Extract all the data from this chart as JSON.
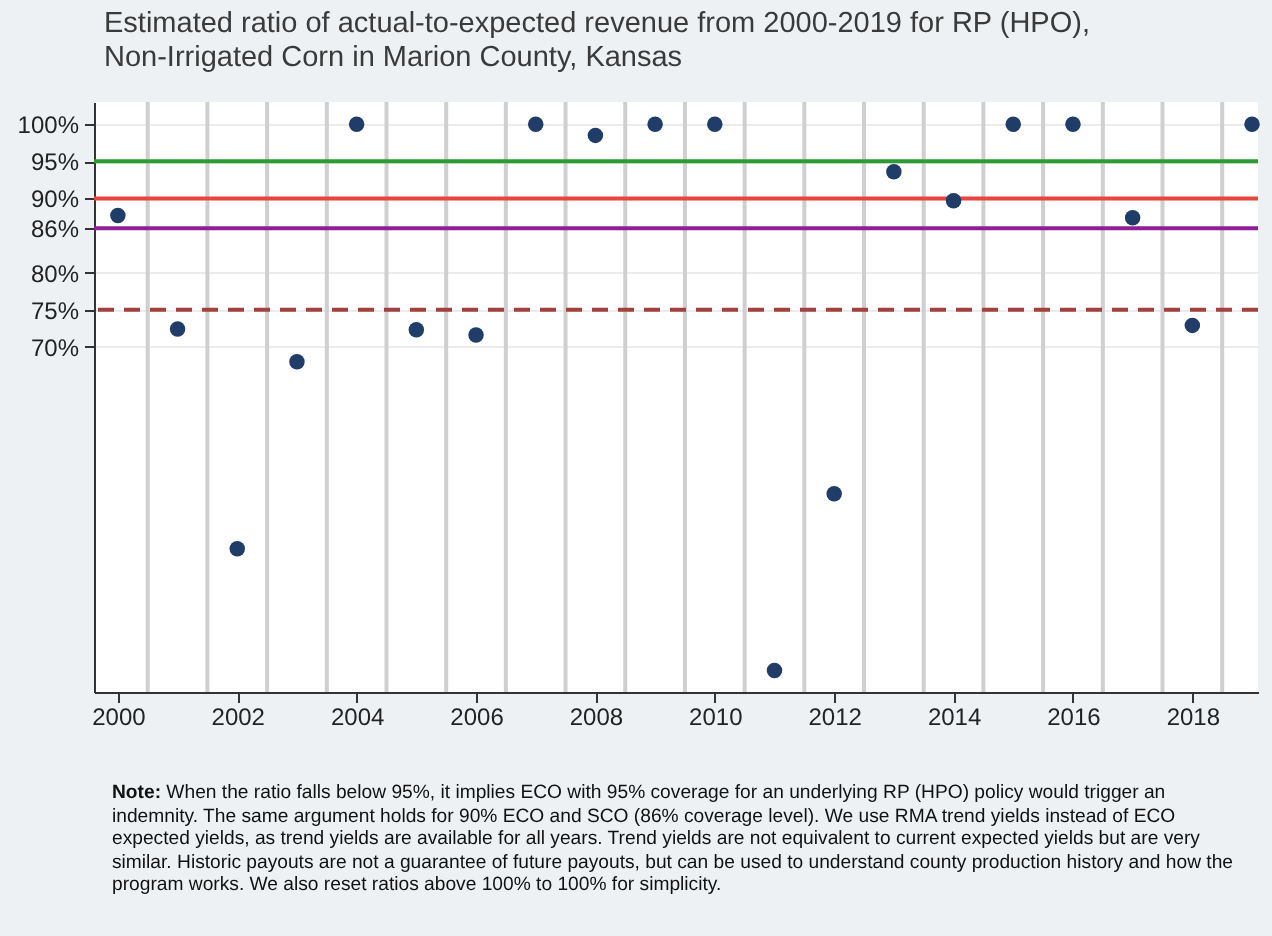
{
  "chart_data": {
    "type": "scatter",
    "title": "Estimated ratio of actual-to-expected revenue from 2000-2019 for RP (HPO), Non-Irrigated Corn in Marion County, Kansas",
    "x": [
      2000,
      2001,
      2002,
      2003,
      2004,
      2005,
      2006,
      2007,
      2008,
      2009,
      2010,
      2011,
      2012,
      2013,
      2014,
      2015,
      2016,
      2017,
      2018,
      2019
    ],
    "series": [
      {
        "color": "#1f3d68",
        "values": [
          87.7,
          72.4,
          42.8,
          68.0,
          100,
          72.3,
          71.6,
          100,
          98.5,
          100,
          100,
          26.4,
          50.2,
          93.6,
          89.7,
          100,
          100,
          87.4,
          72.9,
          100
        ]
      }
    ],
    "marker": "circle",
    "xlim": [
      1999.6,
      2019.1
    ],
    "xticks": [
      2000,
      {
        "value": 2000.5,
        "label": null
      },
      {
        "value": 2001.5,
        "label": null
      },
      2002,
      {
        "value": 2002.5,
        "label": null
      },
      {
        "value": 2003.5,
        "label": null
      },
      2004,
      {
        "value": 2004.5,
        "label": null
      },
      {
        "value": 2005.5,
        "label": null
      },
      2006,
      {
        "value": 2006.5,
        "label": null
      },
      {
        "value": 2007.5,
        "label": null
      },
      2008,
      {
        "value": 2008.5,
        "label": null
      },
      {
        "value": 2009.5,
        "label": null
      },
      2010,
      {
        "value": 2010.5,
        "label": null
      },
      {
        "value": 2011.5,
        "label": null
      },
      2012,
      {
        "value": 2012.5,
        "label": null
      },
      {
        "value": 2013.5,
        "label": null
      },
      2014,
      {
        "value": 2014.5,
        "label": null
      },
      {
        "value": 2015.5,
        "label": null
      },
      2016,
      {
        "value": 2016.5,
        "label": null
      },
      {
        "value": 2017.5,
        "label": null
      },
      2018,
      {
        "value": 2018.5,
        "label": null
      }
    ],
    "ylim": [
      23.5,
      103
    ],
    "yticks": [
      {
        "value": 100,
        "label": "100%"
      },
      {
        "value": 95,
        "label": "95%"
      },
      {
        "value": 90,
        "label": "90%"
      },
      {
        "value": 86,
        "label": "86%"
      },
      {
        "value": 80,
        "label": "80%"
      },
      {
        "value": 75,
        "label": "75%"
      },
      {
        "value": 70,
        "label": "70%"
      }
    ],
    "grid": true,
    "ref_lines": [
      {
        "axis": "y",
        "value": 95,
        "color": "#2e9a36",
        "line_style": "solid"
      },
      {
        "axis": "y",
        "value": 90,
        "color": "#e8453c",
        "line_style": "solid"
      },
      {
        "axis": "y",
        "value": 86,
        "color": "#8e1f99",
        "line_style": "solid"
      },
      {
        "axis": "y",
        "value": 75,
        "color": "#a3413e",
        "line_style": "dashed"
      }
    ],
    "annotations": [
      "Note: When the ratio falls below 95%, it implies ECO with 95% coverage for an underlying RP (HPO) policy would trigger an indemnity. The same argument holds for 90% ECO and SCO (86% coverage level). We use RMA trend yields instead of ECO expected yields, as trend yields are available for all years. Trend yields are not equivalent to current expected yields but are very similar. Historic payouts are not a guarantee of future payouts,  but can be used to understand county production history and how the program works. We also reset ratios above 100% to 100% for simplicity."
    ]
  }
}
